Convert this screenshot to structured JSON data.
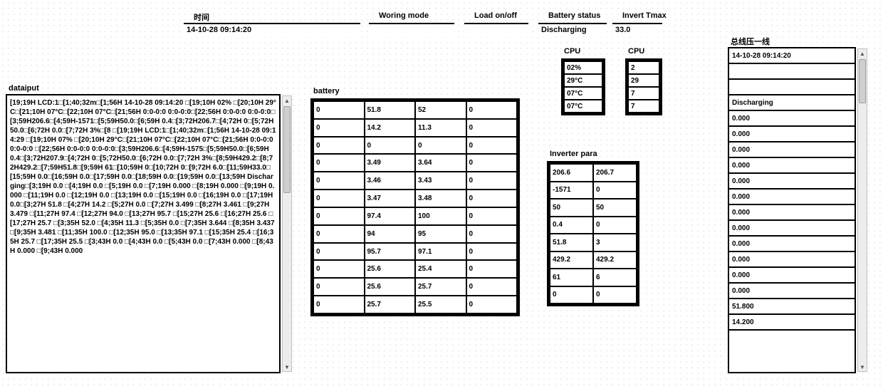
{
  "header": {
    "time": {
      "label": "时间",
      "value": "14-10-28 09:14:20"
    },
    "mode": {
      "label": "Woring mode",
      "value": ""
    },
    "load": {
      "label": "Load on/off",
      "value": ""
    },
    "battery_status": {
      "label": "Battery status",
      "value": "Discharging"
    },
    "invert_tmax": {
      "label": "Invert Tmax",
      "value": "33.0"
    }
  },
  "datainput": {
    "label": "dataiput",
    "text": "[19;19H LCD:1□[1;40;32m□[1;56H 14-10-28 09:14:20 □[19;10H 02% □[20;10H 29°C□[21;10H 07°C□[22;10H 07°C□[21;56H 0:0-0:0 0:0-0:0□[22;56H 0:0-0:0 0:0-0:0□[3;59H206.6□[4;59H-1571□[5;59H50.0□[6;59H 0.4□[3;72H206.7□[4;72H 0□[5;72H50.0□[6;72H 0.0□[7;72H   3%□[8 □[19;19H LCD:1□[1;40;32m□[1;56H 14-10-28 09:14:29 □[19;10H 07% □[20;10H 29°C□[21;10H 07°C□[22;10H 07°C□[21;56H 0:0-0:0 0:0-0:0 □[22;56H 0:0-0:0 0:0-0:0□[3;59H206.6□[4;59H-1575□[5;59H50.0□[6;59H 0.4□[3;72H207.9□[4;72H 0□[5;72H50.0□[6;72H 0.0□[7;72H 3%□[8;59H429.2□[8;72H429.2□[7;59H51.8□[9;59H  61□[10;59H 0□[10;72H  0□[9;72H 6.0□[11;59H33.0□[15;59H  0.0□[16;59H 0.0□[17;59H  0.0□[18;59H  0.0□[19;59H  0.0□[13;59H Discharging□[3;19H 0.0 □[4;19H 0.0 □[5;19H 0.0 □[7;19H 0.000 □[8;19H 0.000 □[9;19H 0.000 □[11;19H 0.0 □[12;19H 0.0 □[13;19H 0.0 □[15;19H 0.0 □[16;19H 0.0 □[17;19H 0.0□[3;27H 51.8 □[4;27H 14.2 □[5;27H 0.0 □[7;27H 3.499 □[8;27H 3.461 □[9;27H 3.479 □[11;27H 97.4 □[12;27H 94.0 □[13;27H 95.7 □[15;27H 25.6 □[16;27H 25.6 □[17;27H 25.7 □[3;35H 52.0 □[4;35H 11.3 □[5;35H 0.0 □[7;35H 3.644 □[8;35H 3.437 □[9;35H 3.481 □[11;35H 100.0 □[12;35H 95.0 □[13;35H 97.1 □[15;35H 25.4 □[16;35H 25.7 □[17;35H 25.5 □[3;43H 0.0 □[4;43H 0.0 □[5;43H 0.0 □[7;43H 0.000 □[8;43H 0.000 □[9;43H 0.000"
  },
  "battery": {
    "label": "battery",
    "rows": [
      [
        "0",
        "51.8",
        "52",
        "0"
      ],
      [
        "0",
        "14.2",
        "11.3",
        "0"
      ],
      [
        "0",
        "0",
        "0",
        "0"
      ],
      [
        "0",
        "3.49",
        "3.64",
        "0"
      ],
      [
        "0",
        "3.46",
        "3.43",
        "0"
      ],
      [
        "0",
        "3.47",
        "3.48",
        "0"
      ],
      [
        "0",
        "97.4",
        "100",
        "0"
      ],
      [
        "0",
        "94",
        "95",
        "0"
      ],
      [
        "0",
        "95.7",
        "97.1",
        "0"
      ],
      [
        "0",
        "25.6",
        "25.4",
        "0"
      ],
      [
        "0",
        "25.6",
        "25.7",
        "0"
      ],
      [
        "0",
        "25.7",
        "25.5",
        "0"
      ]
    ]
  },
  "cpu1": {
    "label": "CPU",
    "values": [
      "02%",
      "29°C",
      "07°C",
      "07°C"
    ]
  },
  "cpu2": {
    "label": "CPU",
    "values": [
      "2",
      "29",
      "7",
      "7"
    ]
  },
  "inverter": {
    "label": "Inverter para",
    "rows": [
      [
        "206.6",
        "206.7"
      ],
      [
        "-1571",
        "0"
      ],
      [
        "50",
        "50"
      ],
      [
        "0.4",
        "0"
      ],
      [
        "51.8",
        "3"
      ],
      [
        "429.2",
        "429.2"
      ],
      [
        "61",
        "6"
      ],
      [
        "0",
        "0"
      ]
    ]
  },
  "rightpanel": {
    "label": "总线压一线",
    "rows": [
      "14-10-28 09:14:20",
      "",
      "",
      "Discharging",
      "0.000",
      "0.000",
      "0.000",
      "0.000",
      "0.000",
      "0.000",
      "0.000",
      "0.000",
      "0.000",
      "0.000",
      "0.000",
      "0.000",
      "51.800",
      "14.200"
    ]
  }
}
